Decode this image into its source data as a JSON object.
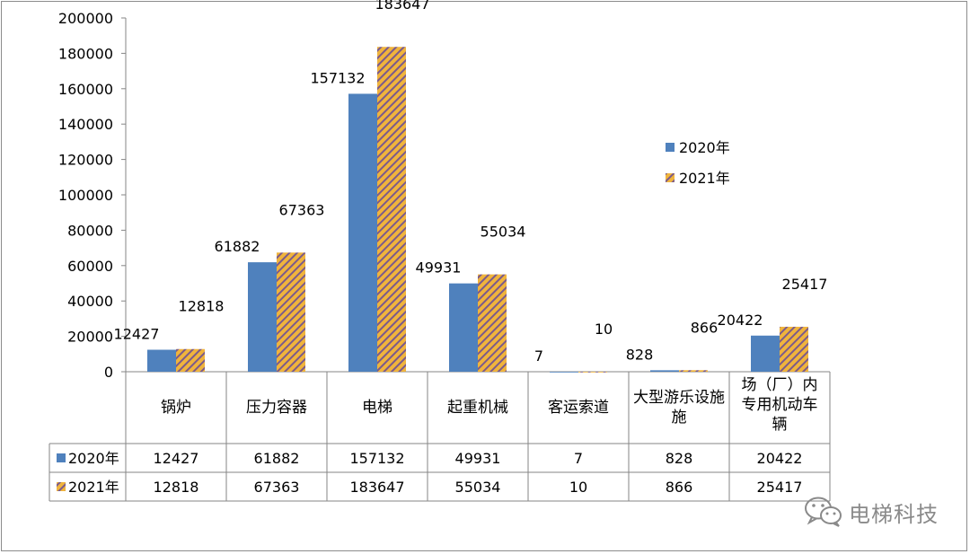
{
  "chart_data": {
    "type": "bar",
    "categories": [
      "锅炉",
      "压力容器",
      "电梯",
      "起重机械",
      "客运索道",
      "大型游乐设施",
      "场（厂）内专用机动车辆"
    ],
    "category_lines": [
      [
        "锅炉"
      ],
      [
        "压力容器"
      ],
      [
        "电梯"
      ],
      [
        "起重机械"
      ],
      [
        "客运索道"
      ],
      [
        "大型游乐设施",
        "施"
      ],
      [
        "场（厂）内",
        "专用机动车",
        "辆"
      ]
    ],
    "series": [
      {
        "name": "2020年",
        "values": [
          12427,
          61882,
          157132,
          49931,
          7,
          828,
          20422
        ],
        "color": "#4f81bd",
        "pattern": "solid"
      },
      {
        "name": "2021年",
        "values": [
          12818,
          67363,
          183647,
          55034,
          10,
          866,
          25417
        ],
        "color": "#f0b43c",
        "pattern": "hatch"
      }
    ],
    "value_labels": [
      [
        "12427",
        "61882",
        "157132",
        "49931",
        "7",
        "828",
        "20422"
      ],
      [
        "12818",
        "67363",
        "183647",
        "55034",
        "10",
        "866",
        "25417"
      ]
    ],
    "ylim": [
      0,
      200000
    ],
    "yticks": [
      0,
      20000,
      40000,
      60000,
      80000,
      100000,
      120000,
      140000,
      160000,
      180000,
      200000
    ],
    "ytick_labels": [
      "0",
      "20000",
      "40000",
      "60000",
      "80000",
      "100000",
      "120000",
      "140000",
      "160000",
      "180000",
      "200000"
    ],
    "xlabel": "",
    "ylabel": "",
    "grid": false,
    "legend_position": "right",
    "data_table": true,
    "hatch_color": "#7b5a8c"
  },
  "watermark": {
    "text": "电梯科技",
    "icon": "wechat-icon"
  }
}
